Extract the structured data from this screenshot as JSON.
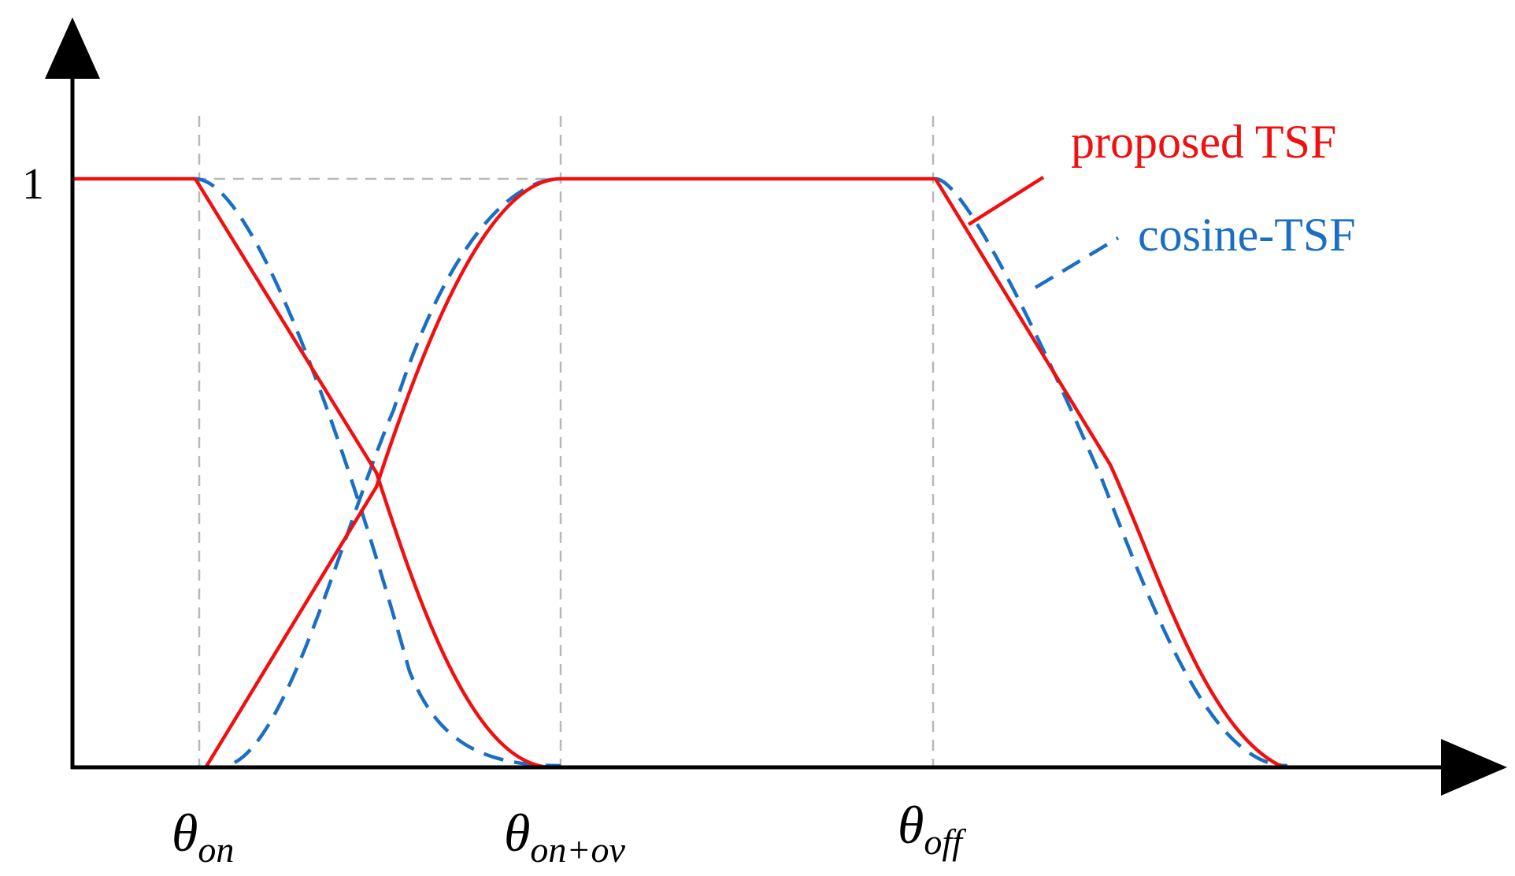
{
  "axes": {
    "y_tick_label": "1"
  },
  "x_labels": [
    {
      "symbol": "θ",
      "subscript": "on"
    },
    {
      "symbol": "θ",
      "subscript": "on+ov"
    },
    {
      "symbol": "θ",
      "subscript": "off"
    }
  ],
  "legend": {
    "proposed_label": "proposed TSF",
    "cosine_label": "cosine-TSF"
  },
  "colors": {
    "proposed": "#f01010",
    "cosine": "#1a6fc4",
    "axis": "#000000",
    "guide": "#b8b8b8"
  }
}
